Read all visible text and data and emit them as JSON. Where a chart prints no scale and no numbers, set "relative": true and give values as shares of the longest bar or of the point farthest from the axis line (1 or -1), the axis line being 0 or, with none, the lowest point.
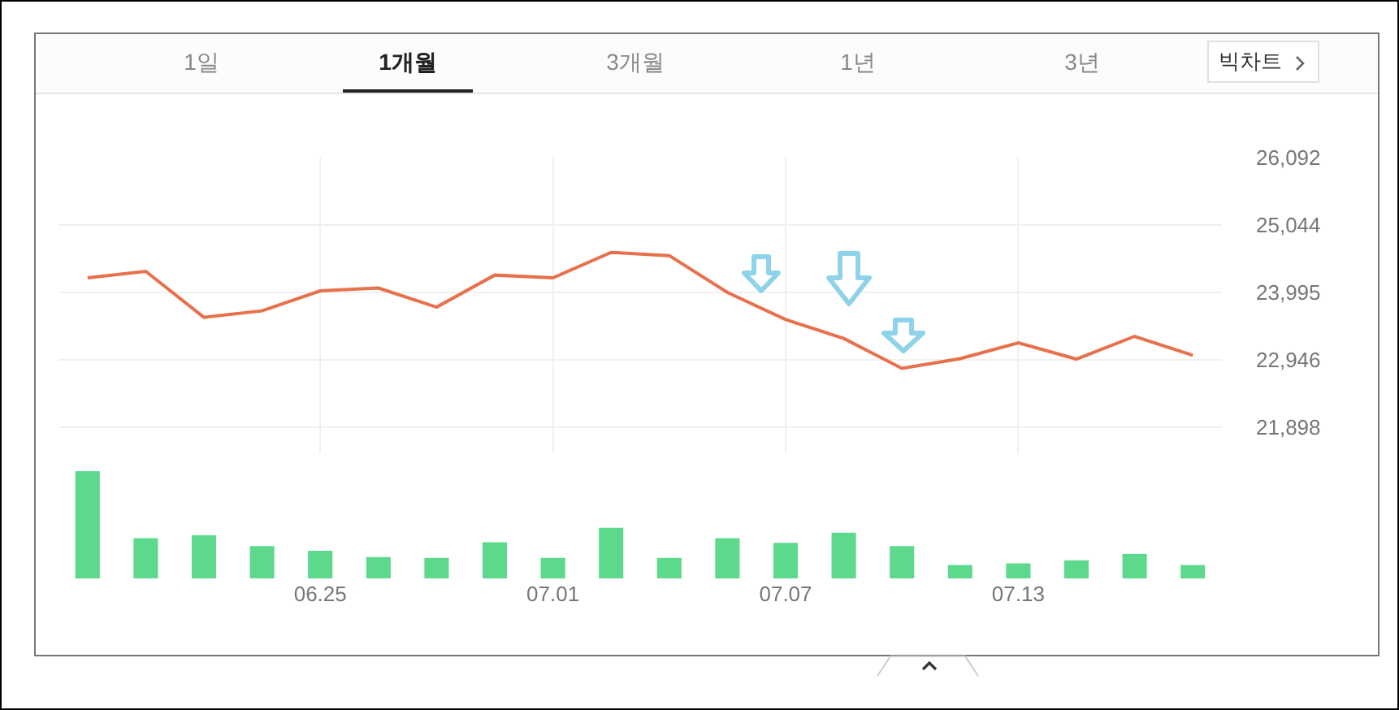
{
  "chart_data": [
    {
      "type": "line",
      "annotations": [
        "1일",
        "1개월",
        "3개월",
        "1년",
        "3년",
        "빅차트"
      ],
      "categories": [
        null,
        null,
        null,
        null,
        "06.25",
        null,
        null,
        null,
        "07.01",
        null,
        null,
        null,
        "07.07",
        null,
        null,
        null,
        "07.13",
        null,
        null,
        null
      ],
      "series": [
        {
          "color": "#e8704a",
          "values": [
            24222,
            24323,
            23608,
            23709,
            24020,
            24063,
            23767,
            24265,
            24222,
            24618,
            24568,
            23995,
            23573,
            23280,
            22815,
            22966,
            23212,
            22959,
            23313,
            23017
          ]
        }
      ],
      "ylim": [
        21494,
        26092
      ],
      "yticks": [
        {
          "value": 26092,
          "label": "26,092"
        },
        {
          "value": 25044,
          "label": "25,044"
        },
        {
          "value": 23995,
          "label": "23,995"
        },
        {
          "value": 22946,
          "label": "22,946"
        },
        {
          "value": 21898,
          "label": "21,898"
        }
      ],
      "grid": true,
      "tick_labels": "y"
    },
    {
      "type": "bar",
      "relative": true,
      "categories": [
        null,
        null,
        null,
        null,
        "06.25",
        null,
        null,
        null,
        "07.01",
        null,
        null,
        null,
        "07.07",
        null,
        null,
        null,
        "07.13",
        null,
        null,
        null
      ],
      "series": [
        {
          "color": "#5cd98b",
          "values": [
            1,
            0.375,
            0.404,
            0.301,
            0.257,
            0.199,
            0.191,
            0.338,
            0.191,
            0.471,
            0.191,
            0.375,
            0.331,
            0.426,
            0.301,
            0.125,
            0.14,
            0.169,
            0.228,
            0.125
          ]
        }
      ],
      "tick_labels": "x"
    }
  ]
}
